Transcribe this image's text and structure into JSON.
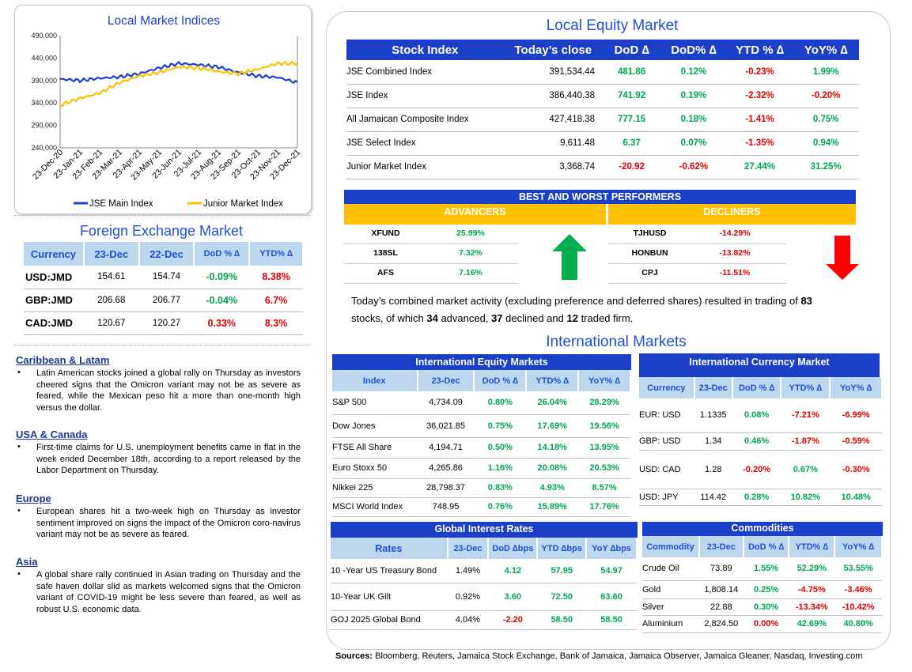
{
  "chart_data": {
    "type": "line",
    "title": "Local Market Indices",
    "categories": [
      "23-Dec-20",
      "23-Jan-21",
      "23-Feb-21",
      "23-Mar-21",
      "23-Apr-21",
      "23-May-21",
      "23-Jun-21",
      "23-Jul-21",
      "23-Aug-21",
      "23-Sep-21",
      "23-Oct-21",
      "23-Nov-21",
      "23-Dec-21"
    ],
    "y_ticks": [
      "240,000",
      "290,000",
      "340,000",
      "390,000",
      "440,000",
      "490,000"
    ],
    "ylim": [
      240000,
      490000
    ],
    "legend_position": "bottom",
    "series": [
      {
        "name": "JSE Main Index",
        "color": "#1f3fd6",
        "values": [
          393000,
          390000,
          395000,
          398000,
          405000,
          418000,
          428000,
          425000,
          420000,
          408000,
          400000,
          397000,
          385000
        ]
      },
      {
        "name": "Junior Market Index",
        "color": "#ffc000",
        "values": [
          335000,
          350000,
          362000,
          385000,
          400000,
          408000,
          420000,
          418000,
          410000,
          405000,
          415000,
          428000,
          428000
        ]
      }
    ]
  },
  "equity": {
    "title": "Local Equity Market",
    "headers": [
      "Stock Index",
      "Today’s close",
      "DoD  ∆",
      "DoD% ∆",
      "YTD % ∆",
      "YoY% ∆"
    ],
    "rows": [
      {
        "name": "JSE Combined Index",
        "close": "391,534.44",
        "dod": "481.86",
        "dodp": "0.12%",
        "ytd": "-0.23%",
        "yoy": "1.99%",
        "c": [
          "green",
          "green",
          "red",
          "green"
        ]
      },
      {
        "name": "JSE Index",
        "close": "386,440.38",
        "dod": "741.92",
        "dodp": "0.19%",
        "ytd": "-2.32%",
        "yoy": "-0.20%",
        "c": [
          "green",
          "green",
          "red",
          "red"
        ]
      },
      {
        "name": "All Jamaican Composite Index",
        "close": "427,418.38",
        "dod": "777.15",
        "dodp": "0.18%",
        "ytd": "-1.41%",
        "yoy": "0.75%",
        "c": [
          "green",
          "green",
          "red",
          "green"
        ]
      },
      {
        "name": "JSE Select Index",
        "close": "9,611.48",
        "dod": "6.37",
        "dodp": "0.07%",
        "ytd": "-1.35%",
        "yoy": "0.94%",
        "c": [
          "green",
          "green",
          "red",
          "green"
        ]
      },
      {
        "name": "Junior Market Index",
        "close": "3,368.74",
        "dod": "-20.92",
        "dodp": "-0.62%",
        "ytd": "27.44%",
        "yoy": "31.25%",
        "c": [
          "red",
          "red",
          "green",
          "green"
        ]
      }
    ]
  },
  "performers": {
    "title": "BEST AND WORST PERFORMERS",
    "adv_label": "ADVANCERS",
    "dec_label": "DECLINERS",
    "advancers": [
      {
        "sym": "XFUND",
        "pct": "25.99%"
      },
      {
        "sym": "138SL",
        "pct": "7.32%"
      },
      {
        "sym": "AFS",
        "pct": "7.16%"
      }
    ],
    "decliners": [
      {
        "sym": "TJHUSD",
        "pct": "-14.29%"
      },
      {
        "sym": "HONBUN",
        "pct": "-13.82%"
      },
      {
        "sym": "CPJ",
        "pct": "-11.51%"
      }
    ]
  },
  "activity": {
    "p1": "Today’s combined market activity (excluding preference and deferred shares) resulted in trading of ",
    "total": "83",
    "p2": "stocks, of which ",
    "adv": "34",
    "p3": " advanced, ",
    "dec": "37",
    "p4": " declined and ",
    "firm": "12",
    "p5": " traded firm."
  },
  "forex": {
    "title": "Foreign Exchange Market",
    "headers": [
      "Currency",
      "23-Dec",
      "22-Dec",
      "DoD % ∆",
      "YTD% ∆"
    ],
    "rows": [
      {
        "cur": "USD:JMD",
        "a": "154.61",
        "b": "154.74",
        "dod": "-0.09%",
        "ytd": "8.38%",
        "c": [
          "green",
          "red"
        ]
      },
      {
        "cur": "GBP:JMD",
        "a": "206.68",
        "b": "206.77",
        "dod": "-0.04%",
        "ytd": "6.7%",
        "c": [
          "green",
          "red"
        ]
      },
      {
        "cur": "CAD:JMD",
        "a": "120.67",
        "b": "120.27",
        "dod": "0.33%",
        "ytd": "8.3%",
        "c": [
          "red",
          "red"
        ]
      }
    ]
  },
  "news": [
    {
      "h": "Caribbean & Latam",
      "p": "Latin American stocks joined a global rally on Thursday as investors cheered signs that the Omicron variant may not be as severe as feared, while the Mexican peso hit a more than one-month high versus the dollar."
    },
    {
      "h": "USA & Canada",
      "p": "First-time claims for U.S. unemployment benefits came in flat in the week ended December 18th, according to a report released by the Labor Department on Thursday."
    },
    {
      "h": "Europe",
      "p": "European shares hit a two-week high on Thursday as investor sentiment improved on signs the impact of the Omicron coro-navirus variant may not be as severe as feared."
    },
    {
      "h": "Asia",
      "p": "A global share rally continued in Asian trading on Thursday and the safe haven dollar slid as markets welcomed signs that the Omicron variant of COVID-19 might be less severe than feared, as well as robust U.S. economic data."
    }
  ],
  "intl": {
    "title": "International Markets",
    "equity": {
      "title": "International Equity Markets",
      "headers": [
        "Index",
        "23-Dec",
        "DoD % ∆",
        "YTD% ∆",
        "YoY% ∆"
      ],
      "rows": [
        {
          "n": "S&P 500",
          "v": "4,734.09",
          "a": "0.80%",
          "b": "26.04%",
          "c": "28.29%"
        },
        {
          "n": "Dow Jones",
          "v": "36,021.85",
          "a": "0.75%",
          "b": "17.69%",
          "c": "19.56%"
        },
        {
          "n": "FTSE All Share",
          "v": "4,194.71",
          "a": "0.50%",
          "b": "14.18%",
          "c": "13.95%"
        },
        {
          "n": "Euro Stoxx 50",
          "v": "4,265.86",
          "a": "1.16%",
          "b": "20.08%",
          "c": "20.53%"
        },
        {
          "n": "Nikkei 225",
          "v": "28,798.37",
          "a": "0.83%",
          "b": "4.93%",
          "c": "8.57%"
        },
        {
          "n": "MSCI World Index",
          "v": "748.95",
          "a": "0.76%",
          "b": "15.89%",
          "c": "17.76%"
        }
      ]
    },
    "currency": {
      "title": "International Currency Market",
      "headers": [
        "Currency",
        "23-Dec",
        "DoD % ∆",
        "YTD% ∆",
        "YoY% ∆"
      ],
      "rows": [
        {
          "n": "EUR: USD",
          "v": "1.1335",
          "a": "0.08%",
          "b": "-7.21%",
          "c": "-6.99%",
          "k": [
            "green",
            "red",
            "red"
          ]
        },
        {
          "n": "GBP: USD",
          "v": "1.34",
          "a": "0.46%",
          "b": "-1.87%",
          "c": "-0.59%",
          "k": [
            "green",
            "red",
            "red"
          ]
        },
        {
          "n": "USD: CAD",
          "v": "1.28",
          "a": "-0.20%",
          "b": "0.67%",
          "c": "-0.30%",
          "k": [
            "red",
            "green",
            "red"
          ]
        },
        {
          "n": "USD: JPY",
          "v": "114.42",
          "a": "0.28%",
          "b": "10.82%",
          "c": "10.48%",
          "k": [
            "green",
            "green",
            "green"
          ]
        }
      ]
    },
    "rates": {
      "title": "Global Interest Rates",
      "headers": [
        "Rates",
        "23-Dec",
        "DoD ∆bps",
        "YTD ∆bps",
        "YoY ∆bps"
      ],
      "rows": [
        {
          "n": "10 -Year US Treasury Bond",
          "v": "1.49%",
          "a": "4.12",
          "b": "57.95",
          "c": "54.97",
          "k": [
            "green",
            "green",
            "green"
          ]
        },
        {
          "n": "10-Year UK Gilt",
          "v": "0.92%",
          "a": "3.60",
          "b": "72.50",
          "c": "63.60",
          "k": [
            "green",
            "green",
            "green"
          ]
        },
        {
          "n": "GOJ 2025 Global Bond",
          "v": "4.04%",
          "a": "-2.20",
          "b": "58.50",
          "c": "58.50",
          "k": [
            "red",
            "green",
            "green"
          ]
        }
      ]
    },
    "commodities": {
      "title": "Commodities",
      "headers": [
        "Commodity",
        "23-Dec",
        "DoD % ∆",
        "YTD% ∆",
        "YoY% ∆"
      ],
      "rows": [
        {
          "n": "Crude Oil",
          "v": "73.89",
          "a": "1.55%",
          "b": "52.29%",
          "c": "53.55%",
          "k": [
            "green",
            "green",
            "green"
          ]
        },
        {
          "n": "Gold",
          "v": "1,808.14",
          "a": "0.25%",
          "b": "-4.75%",
          "c": "-3.46%",
          "k": [
            "green",
            "red",
            "red"
          ]
        },
        {
          "n": "Silver",
          "v": "22.88",
          "a": "0.30%",
          "b": "-13.34%",
          "c": "-10.42%",
          "k": [
            "green",
            "red",
            "red"
          ]
        },
        {
          "n": "Aluminium",
          "v": "2,824.50",
          "a": "0.00%",
          "b": "42.69%",
          "c": "40.80%",
          "k": [
            "red",
            "green",
            "green"
          ]
        }
      ]
    }
  },
  "sources": {
    "label": "Sources:",
    "text": " Bloomberg, Reuters, Jamaica Stock Exchange, Bank of Jamaica, Jamaica Observer, Jamaica Gleaner, Nasdaq, Investing.com"
  }
}
